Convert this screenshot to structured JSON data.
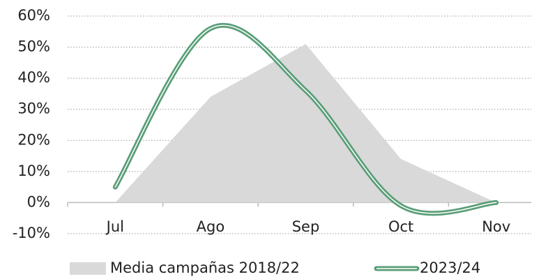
{
  "chart_data": {
    "type": "line",
    "categories": [
      "Jul",
      "Ago",
      "Sep",
      "Oct",
      "Nov"
    ],
    "series": [
      {
        "name": "Media campañas 2018/22",
        "type": "area",
        "color": "#d9d9d9",
        "values": [
          0,
          34,
          51,
          14,
          0
        ]
      },
      {
        "name": "2023/24",
        "type": "line",
        "color": "#5a9e78",
        "values": [
          5,
          56,
          36,
          -1,
          0
        ]
      }
    ],
    "ylim": [
      -10,
      60
    ],
    "yticks": [
      {
        "value": -10,
        "label": "-10%"
      },
      {
        "value": 0,
        "label": "0%"
      },
      {
        "value": 10,
        "label": "10%"
      },
      {
        "value": 20,
        "label": "20%"
      },
      {
        "value": 30,
        "label": "30%"
      },
      {
        "value": 40,
        "label": "40%"
      },
      {
        "value": 50,
        "label": "50%"
      },
      {
        "value": 60,
        "label": "60%"
      }
    ],
    "grid": true
  }
}
